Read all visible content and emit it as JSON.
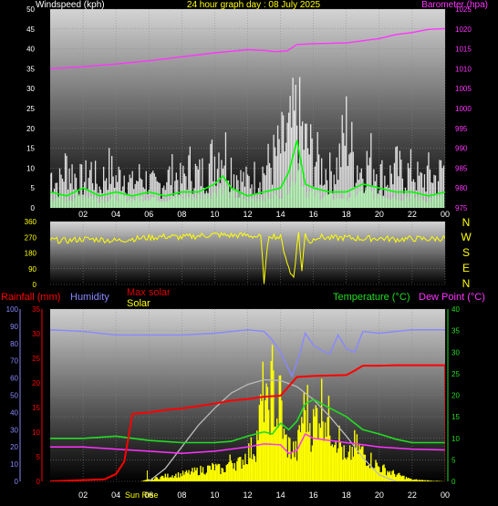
{
  "colors": {
    "background": "#000000",
    "title": "#ffff00",
    "wind_label": "#ffffff",
    "barometer": "#ff33ff",
    "gust": "#ffffff",
    "average_wind": "#00ff00",
    "direction": "#ffff00",
    "compass": "#ffff00",
    "rainfall": "#ff0000",
    "humidity": "#8888ff",
    "max_solar": "#dd0000",
    "solar": "#ffff00",
    "temperature": "#22dd22",
    "dew_point": "#ff33ff",
    "axis_tick": "#ffffff"
  },
  "header": {
    "title": "24 hour graph day : 08 July 2025",
    "windspeed_label": "Windspeed (kph)",
    "barometer_label": "Barometer (hpa)"
  },
  "compass_letters": [
    "N",
    "W",
    "S",
    "E",
    "N"
  ],
  "legend": {
    "rainfall": "Rainfall (mm)",
    "humidity": "Humidity",
    "max_solar": "Max solar",
    "solar": "Solar",
    "temperature": "Temperature (°C)",
    "dew_point": "Dew Point (°C)"
  },
  "x_axis": {
    "ticks": [
      "02",
      "04",
      "06",
      "08",
      "10",
      "12",
      "14",
      "16",
      "18",
      "20",
      "22",
      "00"
    ],
    "sunrise_label": "Sun Rise",
    "sunrise_hour": 5.9
  },
  "chart_data": [
    {
      "type": "line",
      "panel": "wind_barometer",
      "x_unit": "hours",
      "y_left": {
        "ticks": [
          0,
          5,
          10,
          15,
          20,
          25,
          30,
          35,
          40,
          45,
          50
        ],
        "range": [
          0,
          50
        ]
      },
      "y_right": {
        "ticks": [
          975,
          980,
          985,
          990,
          995,
          1000,
          1005,
          1010,
          1015,
          1020,
          1025
        ],
        "range": [
          975,
          1025
        ]
      },
      "series": [
        {
          "name": "Barometer (hpa)",
          "axis": "right",
          "x": [
            0,
            2,
            4,
            6,
            8,
            10,
            12,
            13,
            13.7,
            14.4,
            15,
            16,
            18,
            20,
            21,
            22,
            23,
            24
          ],
          "y": [
            1010,
            1010.5,
            1011.2,
            1012,
            1013,
            1014,
            1014.8,
            1014.6,
            1014.3,
            1014.5,
            1016.1,
            1016.3,
            1016.5,
            1017.6,
            1018.6,
            1019.1,
            1019.9,
            1020.1
          ]
        },
        {
          "name": "Gust",
          "x": [
            0,
            0.5,
            1,
            1.5,
            2,
            2.5,
            3,
            3.5,
            4,
            4.5,
            5,
            5.5,
            6,
            6.5,
            7,
            7.5,
            8,
            8.5,
            9,
            9.5,
            10,
            10.5,
            11,
            11.5,
            12,
            12.5,
            13,
            13.5,
            14,
            14.5,
            15,
            15.5,
            16,
            16.5,
            17,
            17.5,
            18,
            18.5,
            19,
            19.5,
            20,
            20.5,
            21,
            21.5,
            22,
            22.5,
            23,
            23.5,
            24
          ],
          "y": [
            12,
            8,
            15,
            11,
            9,
            13,
            7,
            14,
            10,
            12,
            8,
            11,
            9,
            7,
            10,
            12,
            9,
            14,
            11,
            13,
            18,
            21,
            15,
            10,
            9,
            11,
            13,
            16,
            20,
            24,
            31,
            22,
            18,
            14,
            12,
            15,
            27,
            16,
            13,
            17,
            12,
            10,
            14,
            11,
            13,
            9,
            12,
            10,
            15
          ]
        },
        {
          "name": "Average",
          "x": [
            0,
            1,
            2,
            3,
            4,
            5,
            6,
            7,
            8,
            9,
            10,
            10.5,
            11,
            12,
            13,
            14,
            14.5,
            15,
            15.5,
            16,
            17,
            18,
            19,
            20,
            21,
            22,
            23,
            24
          ],
          "y": [
            4,
            3,
            5,
            3,
            4,
            3,
            4,
            3,
            4,
            4,
            6,
            8,
            5,
            3,
            4,
            5,
            9,
            17,
            6,
            5,
            4,
            4,
            6,
            5,
            4,
            4,
            3,
            4
          ]
        }
      ]
    },
    {
      "type": "line",
      "panel": "wind_direction",
      "x_unit": "hours",
      "y": {
        "ticks": [
          0,
          90,
          180,
          270,
          360
        ],
        "range": [
          0,
          360
        ]
      },
      "series": [
        {
          "name": "Direction",
          "x": [
            0,
            1,
            2,
            3,
            4,
            5,
            6,
            7,
            8,
            9,
            10,
            11,
            12,
            12.8,
            13,
            13.3,
            14,
            14.6,
            14.8,
            15.1,
            15.3,
            15.5,
            15.8,
            16.2,
            17,
            18,
            19,
            20,
            21,
            22,
            23,
            24
          ],
          "y": [
            255,
            250,
            260,
            258,
            250,
            262,
            268,
            275,
            270,
            278,
            285,
            280,
            282,
            270,
            20,
            285,
            268,
            60,
            50,
            300,
            75,
            290,
            240,
            275,
            265,
            268,
            262,
            265,
            258,
            262,
            260,
            265
          ]
        }
      ]
    },
    {
      "type": "area",
      "panel": "solar_temperature",
      "x_unit": "hours",
      "y_left_rain": {
        "ticks": [
          0,
          5,
          10,
          15,
          20,
          25,
          30,
          35
        ],
        "range": [
          0,
          35
        ]
      },
      "y_left_humidity": {
        "ticks": [
          0,
          10,
          20,
          30,
          40,
          50,
          60,
          70,
          80,
          90,
          100
        ],
        "range": [
          0,
          100
        ]
      },
      "y_right": {
        "ticks": [
          0,
          5,
          10,
          15,
          20,
          25,
          30,
          35,
          40
        ],
        "range": [
          0,
          40
        ]
      },
      "series": [
        {
          "name": "Solar",
          "axis": "right",
          "x": [
            0,
            5.5,
            6,
            7,
            8,
            9,
            10,
            10.5,
            11,
            11.5,
            12,
            12.5,
            13,
            13.2,
            13.5,
            13.8,
            14,
            14.2,
            14.5,
            15,
            15.3,
            15.6,
            15.9,
            16.2,
            16.5,
            17,
            17.5,
            18,
            18.5,
            19,
            19.5,
            20,
            21,
            22,
            24
          ],
          "y": [
            0,
            0,
            0.5,
            1.5,
            2,
            3,
            4,
            3,
            6,
            5,
            8,
            10,
            26,
            18,
            28,
            17,
            25,
            12,
            10,
            8,
            18,
            21,
            14,
            19,
            22,
            16,
            13,
            5,
            10,
            8,
            6,
            4,
            2,
            0.5,
            0
          ]
        },
        {
          "name": "Max solar",
          "axis": "right",
          "x": [
            6,
            7,
            8,
            9,
            10,
            11,
            12,
            13,
            14,
            15,
            16,
            17,
            18,
            19,
            20,
            21
          ],
          "y": [
            0,
            3,
            8,
            13,
            17,
            20.5,
            22.5,
            23.6,
            23.4,
            22,
            19,
            15,
            10.5,
            5.5,
            1.5,
            0
          ]
        },
        {
          "name": "Rainfall (mm)",
          "axis": "rain",
          "x": [
            0,
            3.3,
            4,
            4.5,
            5,
            6,
            7,
            8,
            9,
            10,
            11,
            12,
            13,
            14,
            15,
            16,
            17,
            18,
            18.5,
            19,
            20,
            21,
            22,
            23,
            24,
            24.05
          ],
          "y": [
            0,
            0.4,
            1.5,
            4,
            13.7,
            14,
            14.5,
            14.8,
            15.3,
            15.8,
            16.4,
            16.7,
            17.2,
            17.4,
            21.2,
            21.4,
            21.5,
            21.6,
            22.5,
            23.5,
            23.5,
            23.6,
            23.6,
            23.6,
            23.6,
            0
          ]
        },
        {
          "name": "Humidity",
          "axis": "humidity",
          "x": [
            0,
            2,
            4,
            6,
            8,
            10,
            12,
            13,
            13.5,
            14,
            14.4,
            14.7,
            15.2,
            15.5,
            16,
            16.5,
            17,
            17.5,
            18,
            18.5,
            19,
            20,
            22,
            24
          ],
          "y": [
            88,
            87,
            85,
            85,
            85,
            86,
            88,
            87,
            82,
            75,
            67,
            61,
            75,
            86,
            79,
            76,
            74,
            85,
            77,
            75,
            87,
            86,
            88,
            88
          ]
        },
        {
          "name": "Temperature (°C)",
          "axis": "right",
          "x": [
            0,
            2,
            4,
            6,
            8,
            10,
            11,
            12,
            13,
            13.5,
            14,
            14.5,
            15,
            15.5,
            16,
            17,
            18,
            19,
            20,
            21,
            22,
            24
          ],
          "y": [
            10,
            10,
            10.5,
            9.5,
            9,
            9,
            9.3,
            10.5,
            11.5,
            11,
            13.5,
            12,
            14,
            18,
            19,
            17,
            15,
            12,
            11,
            9.8,
            9,
            9
          ]
        },
        {
          "name": "Dew Point (°C)",
          "axis": "right",
          "x": [
            0,
            2,
            4,
            6,
            8,
            10,
            12,
            13,
            14,
            14.5,
            15,
            15.5,
            16,
            17,
            18,
            19,
            20,
            22,
            24
          ],
          "y": [
            8,
            8,
            7.5,
            7,
            6.5,
            7,
            8,
            8.7,
            8.5,
            6.5,
            7.2,
            11,
            10,
            9.5,
            9,
            8.5,
            8,
            7.5,
            7.3
          ]
        }
      ]
    }
  ]
}
